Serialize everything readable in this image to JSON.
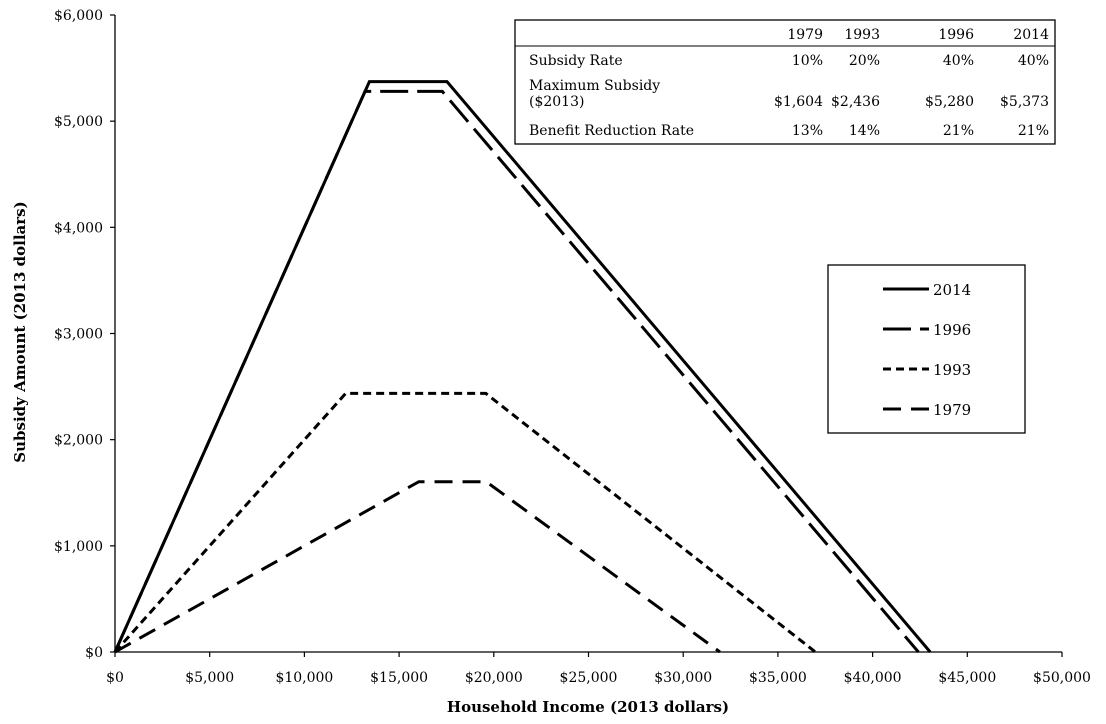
{
  "chart_data": {
    "type": "line",
    "xlabel": "Household Income (2013 dollars)",
    "ylabel": "Subsidy Amount (2013 dollars)",
    "xlim": [
      0,
      50000
    ],
    "ylim": [
      0,
      6000
    ],
    "x_ticks": [
      "$0",
      "$5,000",
      "$10,000",
      "$15,000",
      "$20,000",
      "$25,000",
      "$30,000",
      "$35,000",
      "$40,000",
      "$45,000",
      "$50,000"
    ],
    "y_ticks": [
      "$0",
      "$1,000",
      "$2,000",
      "$3,000",
      "$4,000",
      "$5,000",
      "$6,000"
    ],
    "grid": false,
    "legend_position": "right",
    "series": [
      {
        "name": "2014",
        "style": "solid",
        "x": [
          0,
          13430,
          17530,
          43040
        ],
        "y": [
          0,
          5373,
          5373,
          0
        ]
      },
      {
        "name": "1996",
        "style": "long-dash",
        "x": [
          0,
          13200,
          17280,
          42420
        ],
        "y": [
          0,
          5280,
          5280,
          0
        ]
      },
      {
        "name": "1993",
        "style": "short-dash",
        "x": [
          0,
          12180,
          19580,
          36980
        ],
        "y": [
          0,
          2436,
          2436,
          0
        ]
      },
      {
        "name": "1979",
        "style": "medium-dash",
        "x": [
          0,
          16040,
          19600,
          31940
        ],
        "y": [
          0,
          1604,
          1604,
          0
        ]
      }
    ],
    "table": {
      "header": [
        "",
        "1979",
        "1993",
        "1996",
        "2014"
      ],
      "rows": [
        {
          "label": "Subsidy Rate",
          "values": [
            "10%",
            "20%",
            "40%",
            "40%"
          ]
        },
        {
          "label": "Maximum Subsidy",
          "label2": "($2013)",
          "values": [
            "$1,604",
            "$2,436",
            "$5,280",
            "$5,373"
          ]
        },
        {
          "label": "Benefit Reduction Rate",
          "values": [
            "13%",
            "14%",
            "21%",
            "21%"
          ]
        }
      ]
    }
  }
}
